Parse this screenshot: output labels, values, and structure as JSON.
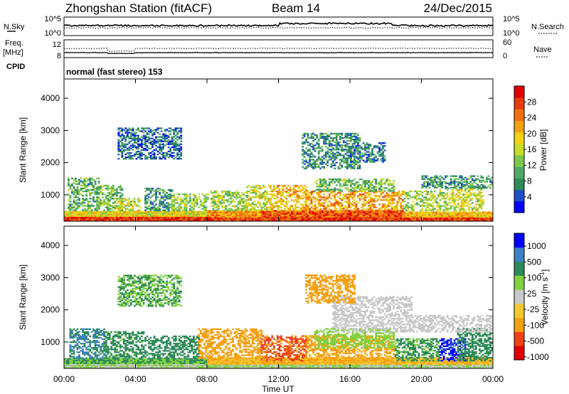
{
  "header": {
    "station": "Zhongshan Station (fitACF)",
    "beam": "Beam 14",
    "date": "24/Dec/2015"
  },
  "top_panels": {
    "nsky_label": "N.Sky",
    "nsky_ticks": [
      "10^5",
      "10^0"
    ],
    "nsearch_label": "N.Search",
    "nsearch_ticks": [
      "10^5",
      "10^0"
    ],
    "freq_label": "Freq.",
    "freq_unit": "[MHz]",
    "freq_ticks": [
      "12",
      "8"
    ],
    "nave_label": "Nave",
    "nave_ticks": [
      "60",
      "0"
    ],
    "cpid_label": "CPID",
    "cpid_text": "normal (fast stereo) 153"
  },
  "chart_data": [
    {
      "type": "heatmap",
      "name": "power",
      "ylabel": "Slant Range [km]",
      "xlabel": "Time UT",
      "xticks": [
        "00:00",
        "04:00",
        "08:00",
        "12:00",
        "16:00",
        "20:00",
        "00:00"
      ],
      "xlim_hours": [
        0,
        24
      ],
      "yticks": [
        1000,
        2000,
        3000,
        4000
      ],
      "ylim": [
        180,
        4600
      ],
      "colorbar": {
        "label": "Power [dB]",
        "ticks": [
          "4",
          "8",
          "12",
          "16",
          "20",
          "24",
          "28"
        ],
        "range": [
          0,
          32
        ],
        "colors": [
          "#0000ff",
          "#1e50c8",
          "#2e8b57",
          "#4fa86a",
          "#7cc84a",
          "#c8dc28",
          "#f5d016",
          "#f5a012",
          "#f07010",
          "#e83c0c",
          "#e00000"
        ]
      },
      "regions": [
        {
          "t": [
            0.0,
            24.0
          ],
          "r": [
            180,
            320
          ],
          "v": 28
        },
        {
          "t": [
            0.0,
            8.0
          ],
          "r": [
            320,
            500
          ],
          "v": 18
        },
        {
          "t": [
            8.0,
            11.0
          ],
          "r": [
            300,
            500
          ],
          "v": 22
        },
        {
          "t": [
            11.0,
            19.0
          ],
          "r": [
            300,
            500
          ],
          "v": 26
        },
        {
          "t": [
            19.0,
            24.0
          ],
          "r": [
            300,
            480
          ],
          "v": 20
        },
        {
          "t": [
            0.2,
            2.0
          ],
          "r": [
            500,
            1500
          ],
          "v": 10
        },
        {
          "t": [
            1.8,
            3.3
          ],
          "r": [
            500,
            1300
          ],
          "v": 12
        },
        {
          "t": [
            3.0,
            4.3
          ],
          "r": [
            500,
            900
          ],
          "v": 16
        },
        {
          "t": [
            4.5,
            6.0
          ],
          "r": [
            500,
            1200
          ],
          "v": 8
        },
        {
          "t": [
            6.0,
            8.0
          ],
          "r": [
            500,
            1000
          ],
          "v": 14
        },
        {
          "t": [
            8.2,
            10.2
          ],
          "r": [
            500,
            1100
          ],
          "v": 14
        },
        {
          "t": [
            10.2,
            11.5
          ],
          "r": [
            500,
            1300
          ],
          "v": 16
        },
        {
          "t": [
            11.5,
            13.5
          ],
          "r": [
            500,
            1300
          ],
          "v": 20
        },
        {
          "t": [
            13.5,
            19.0
          ],
          "r": [
            500,
            1100
          ],
          "v": 22
        },
        {
          "t": [
            14.0,
            18.5
          ],
          "r": [
            1100,
            1500
          ],
          "v": 12
        },
        {
          "t": [
            19.0,
            21.0
          ],
          "r": [
            500,
            1100
          ],
          "v": 14
        },
        {
          "t": [
            21.0,
            23.5
          ],
          "r": [
            500,
            1200
          ],
          "v": 16
        },
        {
          "t": [
            20.0,
            24.0
          ],
          "r": [
            1200,
            1600
          ],
          "v": 9
        },
        {
          "t": [
            13.3,
            16.5
          ],
          "r": [
            1800,
            2900
          ],
          "v": 8
        },
        {
          "t": [
            16.0,
            18.0
          ],
          "r": [
            2000,
            2600
          ],
          "v": 7
        },
        {
          "t": [
            3.0,
            6.5
          ],
          "r": [
            2100,
            3050
          ],
          "v": 6
        }
      ]
    },
    {
      "type": "heatmap",
      "name": "velocity",
      "ylabel": "Slant Range [km]",
      "xlabel": "Time UT",
      "xticks": [
        "00:00",
        "04:00",
        "08:00",
        "12:00",
        "16:00",
        "20:00",
        "00:00"
      ],
      "xlim_hours": [
        0,
        24
      ],
      "yticks": [
        1000,
        2000,
        3000,
        4000
      ],
      "ylim": [
        180,
        4600
      ],
      "colorbar": {
        "label": "Velocity [m s^-1]",
        "ticks": [
          "1000",
          "500",
          "100",
          "25",
          "-25",
          "-100",
          "-500",
          "-1000"
        ],
        "colors": [
          "#e00000",
          "#f04018",
          "#f5a012",
          "#f5c830",
          "#c8c8c8",
          "#80d040",
          "#2e8b57",
          "#3c80c8",
          "#0000ff"
        ]
      },
      "regions": [
        {
          "t": [
            0.0,
            24.0
          ],
          "r": [
            180,
            320
          ],
          "v": 25
        },
        {
          "t": [
            0.0,
            8.0
          ],
          "r": [
            320,
            480
          ],
          "v": 100
        },
        {
          "t": [
            8.0,
            24.0
          ],
          "r": [
            300,
            500
          ],
          "v": -100
        },
        {
          "t": [
            0.3,
            2.3
          ],
          "r": [
            480,
            1400
          ],
          "v": 500
        },
        {
          "t": [
            2.2,
            4.5
          ],
          "r": [
            480,
            1300
          ],
          "v": 150
        },
        {
          "t": [
            4.5,
            7.5
          ],
          "r": [
            480,
            1200
          ],
          "v": 300
        },
        {
          "t": [
            7.5,
            11.0
          ],
          "r": [
            480,
            1400
          ],
          "v": -300
        },
        {
          "t": [
            11.0,
            13.5
          ],
          "r": [
            400,
            1200
          ],
          "v": -600
        },
        {
          "t": [
            13.5,
            18.5
          ],
          "r": [
            400,
            1200
          ],
          "v": -150
        },
        {
          "t": [
            14.0,
            18.5
          ],
          "r": [
            800,
            1400
          ],
          "v": 60
        },
        {
          "t": [
            18.5,
            21.0
          ],
          "r": [
            400,
            1100
          ],
          "v": 120
        },
        {
          "t": [
            21.0,
            22.5
          ],
          "r": [
            400,
            1100
          ],
          "v": 1200
        },
        {
          "t": [
            22.0,
            24.0
          ],
          "r": [
            400,
            1400
          ],
          "v": 300
        },
        {
          "t": [
            15.0,
            19.5
          ],
          "r": [
            1300,
            2400
          ],
          "v": 0
        },
        {
          "t": [
            19.5,
            24.0
          ],
          "r": [
            1300,
            1800
          ],
          "v": 0
        },
        {
          "t": [
            13.5,
            16.2
          ],
          "r": [
            2200,
            3100
          ],
          "v": -200
        },
        {
          "t": [
            3.0,
            6.5
          ],
          "r": [
            2100,
            3050
          ],
          "v": 100
        }
      ]
    }
  ]
}
